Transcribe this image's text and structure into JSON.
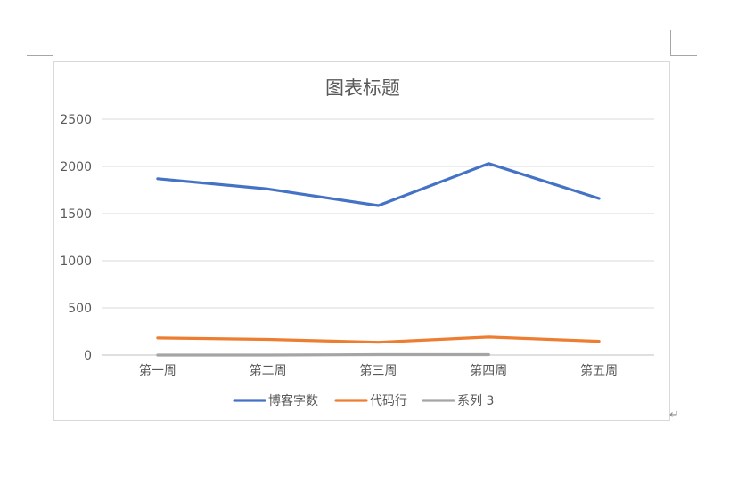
{
  "document": {
    "paragraph_mark": "↵"
  },
  "chart_data": {
    "type": "line",
    "title": "图表标题",
    "categories": [
      "第一周",
      "第二周",
      "第三周",
      "第四周",
      "第五周"
    ],
    "ylim": [
      0,
      2500
    ],
    "yticks": [
      0,
      500,
      1000,
      1500,
      2000,
      2500
    ],
    "grid": true,
    "legend_position": "bottom",
    "series": [
      {
        "name": "博客字数",
        "color": "#4472c4",
        "values": [
          1870,
          1760,
          1585,
          2030,
          1660
        ]
      },
      {
        "name": "代码行",
        "color": "#ed7d31",
        "values": [
          180,
          165,
          135,
          190,
          145
        ]
      },
      {
        "name": "系列 3",
        "color": "#a5a5a5",
        "values": [
          0,
          0,
          5,
          5,
          null
        ]
      }
    ]
  }
}
